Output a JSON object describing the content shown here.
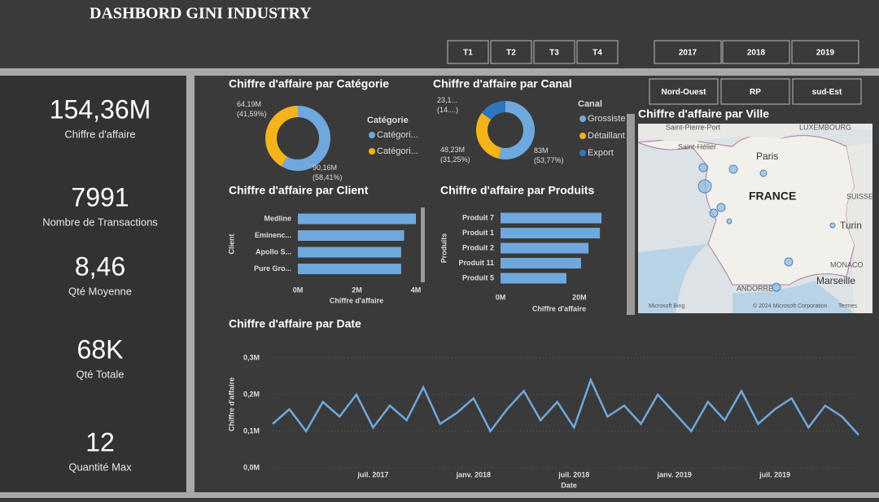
{
  "header": {
    "title": "DASHBORD GINI INDUSTRY"
  },
  "slicers": {
    "quarters": [
      "T1",
      "T2",
      "T3",
      "T4"
    ],
    "years": [
      "2017",
      "2018",
      "2019"
    ],
    "regions": [
      "Nord-Ouest",
      "RP",
      "sud-Est"
    ]
  },
  "kpis": [
    {
      "value": "154,36M",
      "label": "Chiffre d'affaire"
    },
    {
      "value": "7991",
      "label": "Nombre de Transactions"
    },
    {
      "value": "8,46",
      "label": "Qté Moyenne"
    },
    {
      "value": "68K",
      "label": "Qté Totale"
    },
    {
      "value": "12",
      "label": "Quantité Max"
    }
  ],
  "map": {
    "title": "Chiffre d'affaire par Ville",
    "labels": [
      "Saint-Pierre-Port",
      "LUXEMBOURG",
      "Saint-Hélier",
      "Paris",
      "FRANCE",
      "SUISSE",
      "Turin",
      "MONACO",
      "ANDORRE",
      "Marseille",
      "© 2024 Microsoft Corporation",
      "Termes",
      "Microsoft Bing"
    ]
  },
  "chart_data": [
    {
      "type": "donut",
      "title": "Chiffre d'affaire par Catégorie",
      "legend_title": "Catégorie",
      "categories": [
        "Catégori...",
        "Catégori..."
      ],
      "values": [
        90.16,
        64.19
      ],
      "value_labels": [
        "90,16M (58,41%)",
        "64,19M (41,59%)"
      ],
      "colors": [
        "#6fa8dc",
        "#f4b41a"
      ]
    },
    {
      "type": "donut",
      "title": "Chiffre d'affaire par Canal",
      "legend_title": "Canal",
      "categories": [
        "Grossiste",
        "Détaillant",
        "Export"
      ],
      "values": [
        83,
        48.23,
        23.13
      ],
      "value_labels": [
        "83M (53,77%)",
        "48,23M (31,25%)",
        "23,1... (14....)"
      ],
      "colors": [
        "#6fa8dc",
        "#f4b41a",
        "#2f75c0"
      ]
    },
    {
      "type": "hbar",
      "title": "Chiffre d'affaire par Client",
      "xlabel": "Chiffre d'affaire",
      "ylabel": "Client",
      "categories": [
        "Medline",
        "Eminenc...",
        "Apollo S...",
        "Pure Gro..."
      ],
      "values": [
        4.0,
        3.6,
        3.5,
        3.5
      ],
      "color": "#6fa8dc",
      "xlim": [
        0,
        4
      ],
      "xticks": [
        {
          "value": 0,
          "label": "0M"
        },
        {
          "value": 2,
          "label": "2M"
        },
        {
          "value": 4,
          "label": "4M"
        }
      ]
    },
    {
      "type": "hbar",
      "title": "Chiffre d'affaire par Produits",
      "xlabel": "Chiffre d'affaire",
      "ylabel": "Produits",
      "categories": [
        "Produit 7",
        "Produit 1",
        "Produit 2",
        "Produit 11",
        "Produit 5"
      ],
      "values": [
        25.6,
        25.2,
        22.3,
        20.4,
        16.7
      ],
      "color": "#6fa8dc",
      "xlim": [
        0,
        26
      ],
      "xticks": [
        {
          "value": 0,
          "label": "0M"
        },
        {
          "value": 20,
          "label": "20M"
        }
      ]
    },
    {
      "type": "line",
      "title": "Chiffre d'affaire par Date",
      "xlabel": "Date",
      "ylabel": "Chiffre d'affaire",
      "color": "#6fa8dc",
      "x": [
        "2017-01",
        "2017-02",
        "2017-03",
        "2017-04",
        "2017-05",
        "2017-06",
        "2017-07",
        "2017-08",
        "2017-09",
        "2017-10",
        "2017-11",
        "2017-12",
        "2018-01",
        "2018-02",
        "2018-03",
        "2018-04",
        "2018-05",
        "2018-06",
        "2018-07",
        "2018-08",
        "2018-09",
        "2018-10",
        "2018-11",
        "2018-12",
        "2019-01",
        "2019-02",
        "2019-03",
        "2019-04",
        "2019-05",
        "2019-06",
        "2019-07",
        "2019-08",
        "2019-09",
        "2019-10",
        "2019-11",
        "2019-12"
      ],
      "values": [
        0.12,
        0.16,
        0.1,
        0.18,
        0.14,
        0.2,
        0.11,
        0.17,
        0.13,
        0.22,
        0.12,
        0.15,
        0.19,
        0.1,
        0.16,
        0.21,
        0.13,
        0.18,
        0.11,
        0.24,
        0.14,
        0.17,
        0.12,
        0.2,
        0.15,
        0.1,
        0.18,
        0.13,
        0.21,
        0.12,
        0.16,
        0.19,
        0.11,
        0.17,
        0.14,
        0.09
      ],
      "ylim": [
        0,
        0.32
      ],
      "yticks": [
        {
          "value": 0,
          "label": "0,0M"
        },
        {
          "value": 0.1,
          "label": "0,1M"
        },
        {
          "value": 0.2,
          "label": "0,2M"
        },
        {
          "value": 0.3,
          "label": "0,3M"
        }
      ],
      "xticks": [
        {
          "value": "2017-07",
          "label": "juil. 2017"
        },
        {
          "value": "2018-01",
          "label": "janv. 2018"
        },
        {
          "value": "2018-07",
          "label": "juil. 2018"
        },
        {
          "value": "2019-01",
          "label": "janv. 2019"
        },
        {
          "value": "2019-07",
          "label": "juil. 2019"
        }
      ],
      "grid": true
    }
  ]
}
